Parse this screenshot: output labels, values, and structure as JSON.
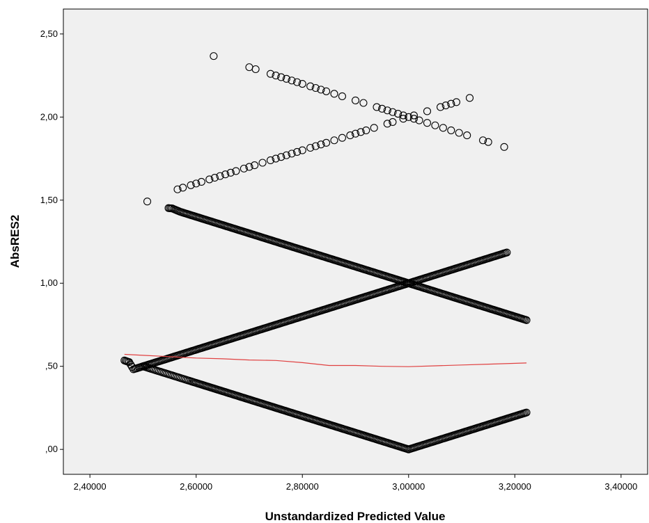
{
  "chart_data": {
    "type": "scatter",
    "title": "",
    "xlabel": "Unstandardized Predicted Value",
    "ylabel": "AbsRES2",
    "xlim": [
      2.35,
      3.45
    ],
    "ylim": [
      -0.15,
      2.65
    ],
    "x_ticks": [
      2.4,
      2.6,
      2.8,
      3.0,
      3.2,
      3.4
    ],
    "x_tick_labels": [
      "2,40000",
      "2,60000",
      "2,80000",
      "3,00000",
      "3,20000",
      "3,40000"
    ],
    "y_ticks": [
      0,
      0.5,
      1.0,
      1.5,
      2.0,
      2.5
    ],
    "y_tick_labels": [
      ",00",
      ",50",
      "1,00",
      "1,50",
      "2,00",
      "2,50"
    ],
    "grid": false,
    "plot_background": "#f0f0f0",
    "marker_color": "#000000",
    "fit_line_color": "#e04040",
    "series": [
      {
        "marker": "circle-open",
        "x": [
          2.465,
          2.474,
          2.482,
          2.5,
          2.506,
          2.512,
          2.518,
          2.524,
          2.53,
          2.536,
          2.542,
          2.548,
          2.554,
          2.56,
          2.566,
          2.572,
          2.578,
          2.584,
          2.59,
          2.6,
          2.62,
          2.64,
          2.66,
          2.68,
          2.7,
          2.72,
          2.74,
          2.76,
          2.78,
          2.8,
          2.82,
          2.84,
          2.86,
          2.88,
          2.9,
          2.92,
          2.94,
          2.96,
          2.98,
          3.0,
          3.02,
          3.04,
          3.06,
          3.08,
          3.1,
          3.12,
          3.14,
          3.16,
          3.17,
          3.18,
          3.19,
          3.2,
          3.21,
          3.222
        ],
        "y": [
          0.535,
          0.525,
          0.482,
          0.5,
          0.494,
          0.488,
          0.482,
          0.476,
          0.47,
          0.464,
          0.458,
          0.452,
          0.446,
          0.44,
          0.434,
          0.428,
          0.422,
          0.416,
          0.41,
          0.4,
          0.38,
          0.36,
          0.34,
          0.32,
          0.3,
          0.28,
          0.26,
          0.24,
          0.22,
          0.2,
          0.18,
          0.16,
          0.14,
          0.12,
          0.1,
          0.08,
          0.06,
          0.04,
          0.02,
          0.0,
          0.02,
          0.04,
          0.06,
          0.08,
          0.1,
          0.12,
          0.14,
          0.16,
          0.17,
          0.18,
          0.19,
          0.2,
          0.21,
          0.222
        ]
      },
      {
        "marker": "circle-open",
        "x": [
          2.5,
          2.52,
          2.54,
          2.56,
          2.58,
          2.6,
          2.62,
          2.64,
          2.66,
          2.68,
          2.7,
          2.72,
          2.74,
          2.76,
          2.78,
          2.8,
          2.82,
          2.84,
          2.86,
          2.88,
          2.9,
          2.92,
          2.94,
          2.96,
          2.98,
          3.0,
          3.02,
          3.04,
          3.06,
          3.08,
          3.1,
          3.12,
          3.14,
          3.16,
          3.17,
          3.18,
          3.185
        ],
        "y": [
          0.5,
          0.52,
          0.54,
          0.56,
          0.58,
          0.6,
          0.62,
          0.64,
          0.66,
          0.68,
          0.7,
          0.72,
          0.74,
          0.76,
          0.78,
          0.8,
          0.82,
          0.84,
          0.86,
          0.88,
          0.9,
          0.92,
          0.94,
          0.96,
          0.98,
          1.0,
          1.02,
          1.04,
          1.06,
          1.08,
          1.1,
          1.12,
          1.14,
          1.16,
          1.17,
          1.18,
          1.185
        ]
      },
      {
        "marker": "circle-open",
        "x": [
          2.548,
          2.555,
          2.57,
          2.58,
          2.6,
          2.62,
          2.64,
          2.66,
          2.68,
          2.7,
          2.72,
          2.74,
          2.76,
          2.78,
          2.8,
          2.82,
          2.84,
          2.86,
          2.88,
          2.9,
          2.92,
          2.94,
          2.96,
          2.98,
          3.0,
          3.02,
          3.04,
          3.06,
          3.08,
          3.1,
          3.12,
          3.14,
          3.16,
          3.17,
          3.18,
          3.19,
          3.205,
          3.222
        ],
        "y": [
          1.452,
          1.45,
          1.43,
          1.42,
          1.4,
          1.38,
          1.36,
          1.34,
          1.32,
          1.3,
          1.28,
          1.26,
          1.24,
          1.22,
          1.2,
          1.18,
          1.16,
          1.14,
          1.12,
          1.1,
          1.08,
          1.06,
          1.04,
          1.02,
          1.0,
          0.98,
          0.96,
          0.94,
          0.92,
          0.9,
          0.88,
          0.86,
          0.84,
          0.83,
          0.82,
          0.81,
          0.795,
          0.778
        ]
      },
      {
        "marker": "circle-open",
        "x": [
          2.508,
          2.565,
          2.575,
          2.59,
          2.6,
          2.61,
          2.625,
          2.635,
          2.645,
          2.655,
          2.665,
          2.675,
          2.69,
          2.7,
          2.71,
          2.725,
          2.74,
          2.75,
          2.76,
          2.77,
          2.78,
          2.79,
          2.8,
          2.815,
          2.825,
          2.835,
          2.845,
          2.86,
          2.875,
          2.89,
          2.9,
          2.91,
          2.92,
          2.935,
          2.96,
          2.97,
          2.99,
          3.01,
          3.035,
          3.06,
          3.07,
          3.08,
          3.09,
          3.115
        ],
        "y": [
          1.492,
          1.565,
          1.575,
          1.59,
          1.6,
          1.61,
          1.625,
          1.635,
          1.645,
          1.655,
          1.665,
          1.675,
          1.69,
          1.7,
          1.71,
          1.725,
          1.74,
          1.75,
          1.76,
          1.77,
          1.78,
          1.79,
          1.8,
          1.815,
          1.825,
          1.835,
          1.845,
          1.86,
          1.875,
          1.89,
          1.9,
          1.91,
          1.92,
          1.935,
          1.96,
          1.97,
          1.99,
          2.01,
          2.035,
          2.06,
          2.07,
          2.08,
          2.09,
          2.115
        ]
      },
      {
        "marker": "circle-open",
        "x": [
          2.633,
          2.7,
          2.712,
          2.74,
          2.75,
          2.76,
          2.77,
          2.78,
          2.79,
          2.8,
          2.815,
          2.825,
          2.835,
          2.845,
          2.86,
          2.875,
          2.9,
          2.915,
          2.94,
          2.95,
          2.96,
          2.97,
          2.98,
          2.99,
          3.0,
          3.01,
          3.02,
          3.035,
          3.05,
          3.065,
          3.08,
          3.095,
          3.11,
          3.14,
          3.15,
          3.18
        ],
        "y": [
          2.367,
          2.3,
          2.288,
          2.26,
          2.25,
          2.24,
          2.23,
          2.22,
          2.21,
          2.2,
          2.185,
          2.175,
          2.165,
          2.155,
          2.14,
          2.125,
          2.1,
          2.085,
          2.06,
          2.05,
          2.04,
          2.03,
          2.02,
          2.01,
          2.0,
          1.99,
          1.98,
          1.965,
          1.95,
          1.935,
          1.92,
          1.905,
          1.89,
          1.86,
          1.85,
          1.82
        ]
      }
    ],
    "fit_line": {
      "x": [
        2.465,
        2.5,
        2.55,
        2.6,
        2.65,
        2.7,
        2.75,
        2.8,
        2.85,
        2.9,
        2.95,
        3.0,
        3.05,
        3.1,
        3.15,
        3.222
      ],
      "y": [
        0.572,
        0.566,
        0.558,
        0.55,
        0.545,
        0.538,
        0.535,
        0.522,
        0.505,
        0.505,
        0.5,
        0.498,
        0.503,
        0.508,
        0.513,
        0.52
      ]
    }
  }
}
